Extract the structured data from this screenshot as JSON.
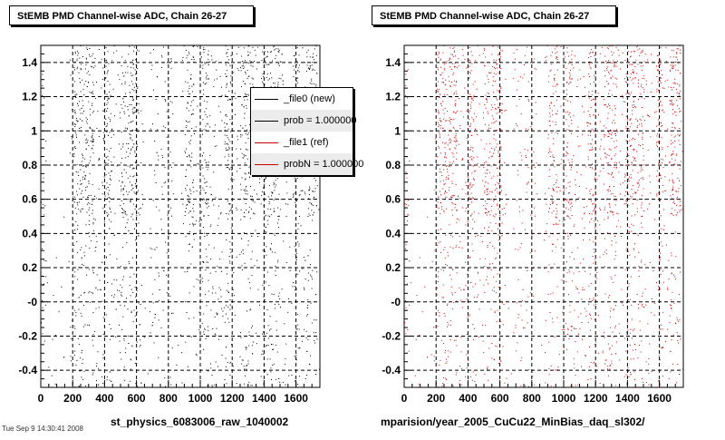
{
  "chart_data": [
    {
      "type": "scatter",
      "title": "StEMB PMD Channel-wise ADC, Chain 26-27",
      "xlabel": "st_physics_6083006_raw_1040002",
      "ylabel": "",
      "xlim": [
        0,
        1750
      ],
      "ylim": [
        -0.5,
        1.5
      ],
      "xticks": [
        0,
        200,
        400,
        600,
        800,
        1000,
        1200,
        1400,
        1600
      ],
      "yticks": [
        -0.4,
        -0.2,
        0,
        0.2,
        0.4,
        0.6,
        0.8,
        1,
        1.2,
        1.4
      ],
      "ytick_labels": [
        "-0.4",
        "-0.2",
        "-0",
        "0.2",
        "0.4",
        "0.6",
        "0.8",
        "1",
        "1.2",
        "1.4"
      ],
      "grid": true,
      "marker_color": "#000000",
      "upper_band": [
        0.5,
        1.5
      ],
      "lower_band": [
        -0.5,
        0.5
      ],
      "dense_ranges": [
        [
          200,
          330
        ],
        [
          400,
          440
        ],
        [
          500,
          610
        ],
        [
          900,
          960
        ],
        [
          1010,
          1050
        ],
        [
          1150,
          1200
        ],
        [
          1250,
          1330
        ],
        [
          1380,
          1500
        ],
        [
          1580,
          1620
        ],
        [
          1660,
          1730
        ]
      ],
      "gap_ranges": [
        [
          30,
          180
        ],
        [
          640,
          680
        ],
        [
          830,
          880
        ]
      ],
      "legend": [
        {
          "label": "_file0 (new)",
          "color": "#000000"
        },
        {
          "label": "prob = 1.000000",
          "color": "#000000"
        },
        {
          "label": "_file1 (ref)",
          "color": "#cc0000"
        },
        {
          "label": "probN = 1.000000",
          "color": "#cc0000"
        }
      ]
    },
    {
      "type": "scatter",
      "title": "StEMB PMD Channel-wise ADC, Chain 26-27",
      "xlabel": "mparision/year_2005_CuCu22_MinBias_daq_sl302/",
      "ylabel": "",
      "xlim": [
        0,
        1750
      ],
      "ylim": [
        -0.5,
        1.5
      ],
      "xticks": [
        0,
        200,
        400,
        600,
        800,
        1000,
        1200,
        1400,
        1600
      ],
      "yticks": [
        -0.4,
        -0.2,
        0,
        0.2,
        0.4,
        0.6,
        0.8,
        1,
        1.2,
        1.4
      ],
      "ytick_labels": [
        "-0.4",
        "-0.2",
        "-0",
        "0.2",
        "0.4",
        "0.6",
        "0.8",
        "1",
        "1.2",
        "1.4"
      ],
      "grid": true,
      "marker_color": "#cc0000",
      "upper_band": [
        0.5,
        1.5
      ],
      "lower_band": [
        -0.5,
        0.5
      ],
      "dense_ranges": [
        [
          200,
          330
        ],
        [
          400,
          440
        ],
        [
          500,
          610
        ],
        [
          900,
          960
        ],
        [
          1010,
          1050
        ],
        [
          1150,
          1200
        ],
        [
          1250,
          1330
        ],
        [
          1380,
          1500
        ],
        [
          1580,
          1620
        ],
        [
          1660,
          1730
        ]
      ],
      "gap_ranges": [
        [
          30,
          180
        ],
        [
          640,
          680
        ],
        [
          830,
          880
        ]
      ]
    }
  ],
  "footer_text": "Tue Sep 9 14:30:41 2008"
}
